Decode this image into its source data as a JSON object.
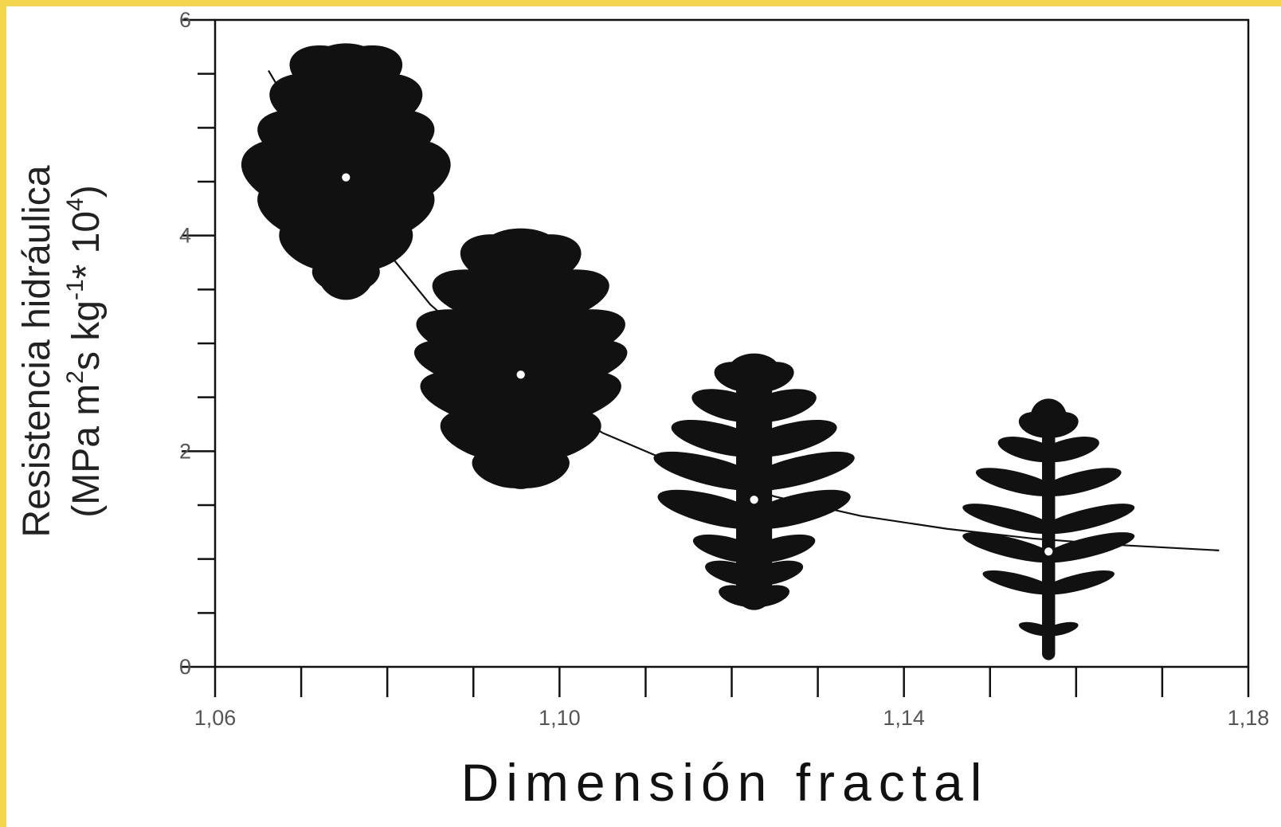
{
  "chart_data": {
    "type": "scatter",
    "xlabel": "Dimensión fractal",
    "ylabel": [
      "Resistencia hidráulica",
      [
        {
          "text": "(MPa m"
        },
        {
          "text": "2",
          "sup": true
        },
        {
          "text": "s kg"
        },
        {
          "text": "-1",
          "sup": true
        },
        {
          "text": "* 10"
        },
        {
          "text": "4",
          "sup": true
        },
        {
          "text": ")"
        }
      ]
    ],
    "x": [
      1.0752,
      1.0955,
      1.1226,
      1.1568
    ],
    "values": [
      4.54,
      2.71,
      1.55,
      1.07
    ],
    "color": "#111111",
    "fit": {
      "x": [
        1.0662,
        1.075,
        1.085,
        1.095,
        1.105,
        1.115,
        1.125,
        1.135,
        1.145,
        1.155,
        1.165,
        1.1766
      ],
      "values": [
        5.53,
        4.34,
        3.36,
        2.66,
        2.17,
        1.83,
        1.58,
        1.4,
        1.28,
        1.19,
        1.13,
        1.08
      ],
      "color": "#111111"
    },
    "xlim": [
      1.06,
      1.18
    ],
    "xticks": [
      {
        "value": 1.06,
        "label": "1,06"
      },
      {
        "value": 1.1,
        "label": "1,10"
      },
      {
        "value": 1.14,
        "label": "1,14"
      },
      {
        "value": 1.18,
        "label": "1,18"
      }
    ],
    "xminorticks": [
      1.07,
      1.08,
      1.09,
      1.11,
      1.12,
      1.13,
      1.15,
      1.16,
      1.17
    ],
    "ylim": [
      0,
      6
    ],
    "yticks": [
      0,
      2,
      4,
      6
    ],
    "yminorticks": [
      0.5,
      1,
      1.5,
      2.5,
      3,
      3.5,
      4.5,
      5,
      5.5
    ],
    "grid": false
  }
}
